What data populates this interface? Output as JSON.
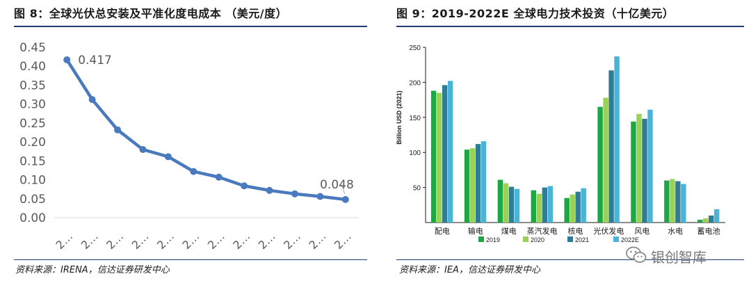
{
  "left": {
    "title": "图 8：全球光伏总安装及平准化度电成本 （美元/度）",
    "source": "资料来源：IRENA，信达证券研发中心"
  },
  "right": {
    "title": "图 9：2019-2022E 全球电力技术投资（十亿美元）",
    "source": "资料来源：IEA，信达证券研发中心"
  },
  "watermark": {
    "text": "银创智库",
    "icon": "wechat-icon"
  },
  "chart_data": [
    {
      "type": "line",
      "title": "",
      "xlabel": "",
      "ylabel": "",
      "ylim": [
        0,
        0.45
      ],
      "yticks": [
        "0.00",
        "0.05",
        "0.10",
        "0.15",
        "0.20",
        "0.25",
        "0.30",
        "0.35",
        "0.40",
        "0.45"
      ],
      "x": [
        "2…",
        "2…",
        "2…",
        "2…",
        "2…",
        "2…",
        "2…",
        "2…",
        "2…",
        "2…",
        "2…",
        "2…"
      ],
      "series": [
        {
          "values": [
            0.417,
            0.312,
            0.232,
            0.18,
            0.161,
            0.122,
            0.107,
            0.084,
            0.072,
            0.063,
            0.056,
            0.048
          ],
          "color": "#4a79bd"
        }
      ],
      "data_labels": [
        {
          "index": 0,
          "text": "0.417"
        },
        {
          "index": 11,
          "text": "0.048"
        }
      ],
      "grid": false
    },
    {
      "type": "bar",
      "title": "",
      "xlabel": "",
      "ylabel": "Billion USD (2021)",
      "ylim": [
        0,
        250
      ],
      "yticks": [
        50,
        100,
        150,
        200,
        250
      ],
      "categories": [
        "配电",
        "输电",
        "煤电",
        "蒸汽发电",
        "核电",
        "光伏发电",
        "风电",
        "水电",
        "蓄电池"
      ],
      "series": [
        {
          "name": "2019",
          "color": "#1ea644",
          "values": [
            188,
            104,
            61,
            46,
            35,
            165,
            144,
            60,
            4
          ]
        },
        {
          "name": "2020",
          "color": "#9bd156",
          "values": [
            185,
            106,
            56,
            41,
            40,
            178,
            155,
            62,
            6
          ]
        },
        {
          "name": "2021",
          "color": "#2f7d94",
          "values": [
            196,
            112,
            51,
            50,
            44,
            217,
            148,
            59,
            10
          ]
        },
        {
          "name": "2022E",
          "color": "#4bb3d6",
          "values": [
            202,
            116,
            48,
            52,
            49,
            237,
            161,
            55,
            19
          ]
        }
      ],
      "legend": "bottom",
      "grid": false
    }
  ]
}
